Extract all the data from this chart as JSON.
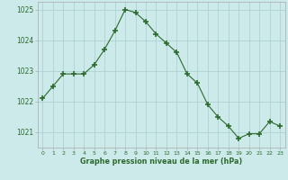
{
  "x": [
    0,
    1,
    2,
    3,
    4,
    5,
    6,
    7,
    8,
    9,
    10,
    11,
    12,
    13,
    14,
    15,
    16,
    17,
    18,
    19,
    20,
    21,
    22,
    23
  ],
  "y": [
    1022.1,
    1022.5,
    1022.9,
    1022.9,
    1022.9,
    1023.2,
    1023.7,
    1024.3,
    1025.0,
    1024.9,
    1024.6,
    1024.2,
    1023.9,
    1023.6,
    1022.9,
    1022.6,
    1021.9,
    1021.5,
    1021.2,
    1020.8,
    1020.95,
    1020.95,
    1021.35,
    1021.2
  ],
  "line_color": "#2d6a2d",
  "marker_color": "#2d6a2d",
  "bg_color": "#cceaea",
  "grid_color": "#aacccc",
  "xlabel": "Graphe pression niveau de la mer (hPa)",
  "ylim": [
    1020.5,
    1025.25
  ],
  "yticks": [
    1021,
    1022,
    1023,
    1024,
    1025
  ],
  "xticks": [
    0,
    1,
    2,
    3,
    4,
    5,
    6,
    7,
    8,
    9,
    10,
    11,
    12,
    13,
    14,
    15,
    16,
    17,
    18,
    19,
    20,
    21,
    22,
    23
  ],
  "xlabel_color": "#2d6a2d",
  "tick_color": "#2d6a2d",
  "tick_label_color": "#2d6a2d",
  "spine_color": "#aaaaaa"
}
